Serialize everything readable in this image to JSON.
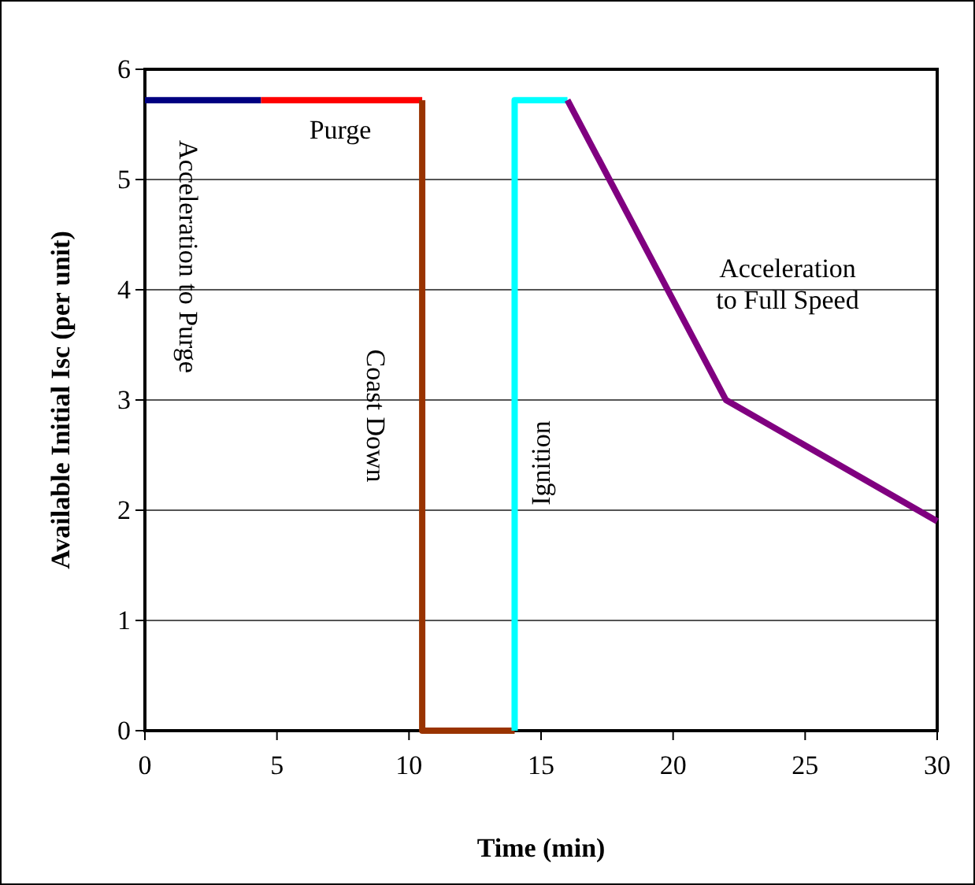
{
  "chart_data": {
    "type": "line",
    "xlabel": "Time (min)",
    "ylabel": "Available Initial Isc (per unit)",
    "xlim": [
      0,
      30
    ],
    "xticks": [
      0,
      5,
      10,
      15,
      20,
      25,
      30
    ],
    "ylim": [
      0,
      6
    ],
    "yticks": [
      0,
      1,
      2,
      3,
      4,
      5,
      6
    ],
    "grid": "y",
    "line_style": "solid",
    "marker": "none",
    "series": [
      {
        "color": "#000080",
        "x": [
          0,
          4.4
        ],
        "values": [
          5.72,
          5.72
        ]
      },
      {
        "color": "#ff0000",
        "x": [
          4.4,
          10.5
        ],
        "values": [
          5.72,
          5.72
        ]
      },
      {
        "color": "#993300",
        "x": [
          10.5,
          10.5,
          14
        ],
        "values": [
          5.72,
          0,
          0
        ]
      },
      {
        "color": "#00ffff",
        "x": [
          14,
          14,
          16
        ],
        "values": [
          0,
          5.72,
          5.72
        ]
      },
      {
        "color": "#800080",
        "x": [
          16,
          22,
          30
        ],
        "values": [
          5.72,
          3,
          1.9
        ]
      }
    ],
    "annotations": [
      "Acceleration to Purge",
      "Purge",
      "Coast Down",
      "Ignition",
      "Acceleration to Full Speed"
    ]
  }
}
